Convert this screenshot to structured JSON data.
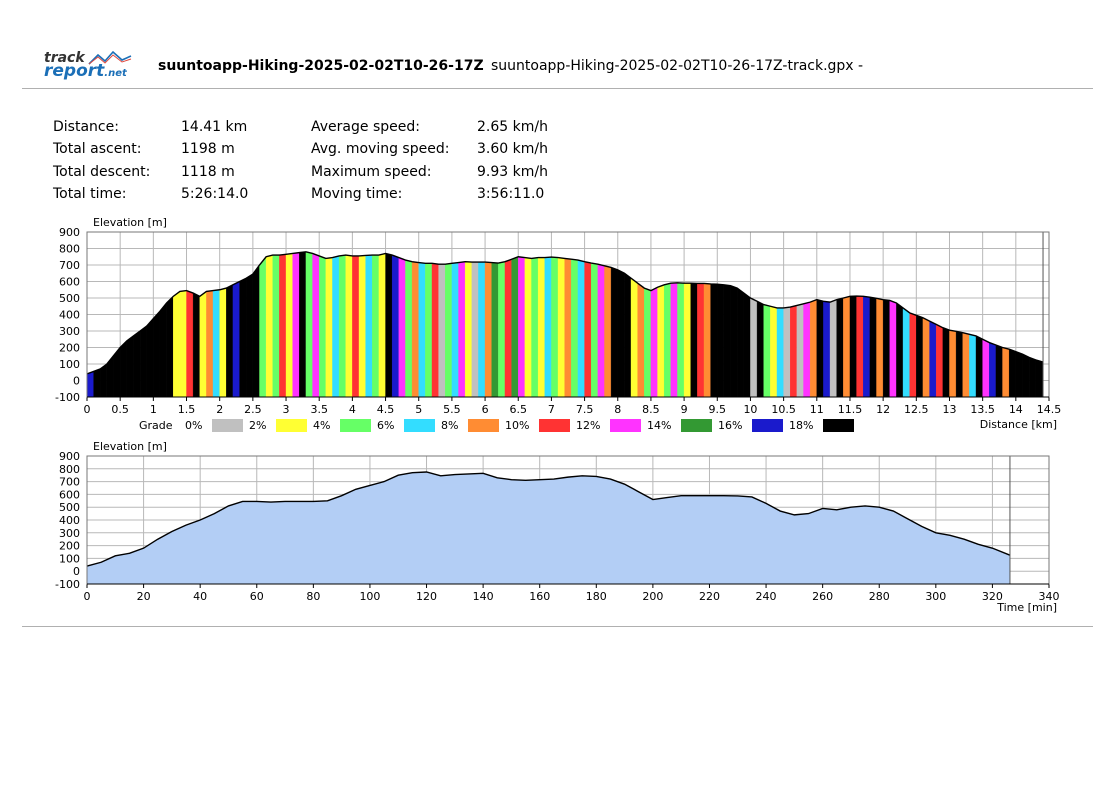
{
  "header": {
    "logo_line1": "track",
    "logo_line2": "report",
    "logo_suffix": ".net",
    "activity_title": "suuntoapp-Hiking-2025-02-02T10-26-17Z",
    "file_name": "suuntoapp-Hiking-2025-02-02T10-26-17Z-track.gpx",
    "dash": "-"
  },
  "stats": {
    "distance_label": "Distance:",
    "distance_value": "14.41 km",
    "ascent_label": "Total ascent:",
    "ascent_value": "1198 m",
    "descent_label": "Total descent:",
    "descent_value": "1118 m",
    "time_label": "Total time:",
    "time_value": "5:26:14.0",
    "avg_speed_label": "Average speed:",
    "avg_speed_value": "2.65 km/h",
    "avg_moving_label": "Avg. moving speed:",
    "avg_moving_value": "3.60 km/h",
    "max_speed_label": "Maximum speed:",
    "max_speed_value": "9.93 km/h",
    "moving_time_label": "Moving time:",
    "moving_time_value": "3:56:11.0"
  },
  "chart_data": [
    {
      "type": "area",
      "ylabel": "Elevation [m]",
      "xlabel": "Distance [km]",
      "xlim": [
        0,
        14.5
      ],
      "ylim": [
        -100,
        900
      ],
      "x_ticks": [
        "0",
        "0.5",
        "1",
        "1.5",
        "2",
        "2.5",
        "3",
        "3.5",
        "4",
        "4.5",
        "5",
        "5.5",
        "6",
        "6.5",
        "7",
        "7.5",
        "8",
        "8.5",
        "9",
        "9.5",
        "10",
        "10.5",
        "11",
        "11.5",
        "12",
        "12.5",
        "13",
        "13.5",
        "14",
        "14.5"
      ],
      "y_ticks": [
        "900",
        "800",
        "700",
        "600",
        "500",
        "400",
        "300",
        "200",
        "100",
        "0",
        "-100"
      ],
      "grid": true,
      "legend_title": "Grade",
      "legend": [
        {
          "label": "0%",
          "color": "#c0c0c0"
        },
        {
          "label": "2%",
          "color": "#ffff33"
        },
        {
          "label": "4%",
          "color": "#66ff66"
        },
        {
          "label": "6%",
          "color": "#33ddff"
        },
        {
          "label": "8%",
          "color": "#ff8c33"
        },
        {
          "label": "10%",
          "color": "#ff3333"
        },
        {
          "label": "12%",
          "color": "#ff33ff"
        },
        {
          "label": "14%",
          "color": "#339933"
        },
        {
          "label": "16%",
          "color": "#1a1acc"
        },
        {
          "label": "18%",
          "color": "#000000"
        }
      ],
      "end_marker": 14.41,
      "x": [
        0,
        0.1,
        0.2,
        0.3,
        0.4,
        0.5,
        0.6,
        0.7,
        0.8,
        0.9,
        1.0,
        1.1,
        1.2,
        1.3,
        1.4,
        1.5,
        1.6,
        1.7,
        1.8,
        1.9,
        2.0,
        2.1,
        2.2,
        2.3,
        2.4,
        2.5,
        2.6,
        2.7,
        2.8,
        2.9,
        3.0,
        3.1,
        3.2,
        3.3,
        3.4,
        3.5,
        3.6,
        3.7,
        3.8,
        3.9,
        4.0,
        4.1,
        4.2,
        4.3,
        4.4,
        4.5,
        4.6,
        4.7,
        4.8,
        4.9,
        5.0,
        5.1,
        5.2,
        5.3,
        5.4,
        5.5,
        5.6,
        5.7,
        5.8,
        5.9,
        6.0,
        6.1,
        6.2,
        6.3,
        6.4,
        6.5,
        6.6,
        6.7,
        6.8,
        6.9,
        7.0,
        7.1,
        7.2,
        7.3,
        7.4,
        7.5,
        7.6,
        7.7,
        7.8,
        7.9,
        8.0,
        8.1,
        8.2,
        8.3,
        8.4,
        8.5,
        8.6,
        8.7,
        8.8,
        8.9,
        9.0,
        9.1,
        9.2,
        9.3,
        9.4,
        9.5,
        9.6,
        9.7,
        9.8,
        9.9,
        10.0,
        10.1,
        10.2,
        10.3,
        10.4,
        10.5,
        10.6,
        10.7,
        10.8,
        10.9,
        11.0,
        11.1,
        11.2,
        11.3,
        11.4,
        11.5,
        11.6,
        11.7,
        11.8,
        11.9,
        12.0,
        12.1,
        12.2,
        12.3,
        12.4,
        12.5,
        12.6,
        12.7,
        12.8,
        12.9,
        13.0,
        13.1,
        13.2,
        13.3,
        13.4,
        13.5,
        13.6,
        13.7,
        13.8,
        13.9,
        14.0,
        14.1,
        14.2,
        14.3,
        14.41
      ],
      "elevation": [
        40,
        55,
        70,
        100,
        150,
        200,
        240,
        270,
        300,
        330,
        375,
        420,
        470,
        510,
        540,
        545,
        530,
        510,
        540,
        545,
        550,
        560,
        580,
        600,
        620,
        645,
        700,
        750,
        760,
        760,
        765,
        770,
        775,
        780,
        770,
        755,
        740,
        745,
        755,
        760,
        755,
        755,
        758,
        760,
        760,
        770,
        760,
        745,
        730,
        720,
        715,
        710,
        710,
        705,
        705,
        710,
        715,
        720,
        718,
        718,
        718,
        715,
        712,
        720,
        735,
        750,
        745,
        740,
        745,
        745,
        748,
        745,
        740,
        735,
        730,
        720,
        712,
        705,
        695,
        685,
        670,
        650,
        620,
        590,
        560,
        545,
        565,
        580,
        590,
        592,
        590,
        590,
        588,
        588,
        585,
        584,
        580,
        575,
        560,
        530,
        500,
        480,
        460,
        450,
        440,
        440,
        445,
        455,
        465,
        475,
        490,
        480,
        475,
        490,
        500,
        510,
        512,
        510,
        505,
        498,
        490,
        485,
        470,
        440,
        410,
        395,
        380,
        360,
        340,
        320,
        305,
        298,
        290,
        280,
        270,
        250,
        230,
        215,
        200,
        190,
        175,
        160,
        140,
        125,
        112
      ],
      "grade_colors": [
        "#1a1acc",
        "#000000",
        "#000000",
        "#000000",
        "#000000",
        "#000000",
        "#000000",
        "#000000",
        "#000000",
        "#000000",
        "#000000",
        "#000000",
        "#000000",
        "#ffff33",
        "#ffff33",
        "#ff3333",
        "#000000",
        "#ffff33",
        "#ff8c33",
        "#33ddff",
        "#ffff33",
        "#000000",
        "#1a1acc",
        "#000000",
        "#000000",
        "#000000",
        "#66ff66",
        "#ffff33",
        "#66ff66",
        "#ff3333",
        "#ffff33",
        "#ff33ff",
        "#000000",
        "#66ff66",
        "#ff33ff",
        "#66ff66",
        "#ffff33",
        "#33ddff",
        "#66ff66",
        "#ffff33",
        "#ff3333",
        "#ffff33",
        "#33ddff",
        "#66ff66",
        "#ffff33",
        "#000000",
        "#1a1acc",
        "#ff33ff",
        "#66ff66",
        "#ff8c33",
        "#33ddff",
        "#66ff66",
        "#ff3333",
        "#c0c0c0",
        "#66ff66",
        "#33ddff",
        "#ff33ff",
        "#ffff33",
        "#c0c0c0",
        "#33ddff",
        "#ff8c33",
        "#339933",
        "#66ff66",
        "#ff3333",
        "#339933",
        "#ff33ff",
        "#ffff33",
        "#66ff66",
        "#ffff33",
        "#33ddff",
        "#66ff66",
        "#ffff33",
        "#ff8c33",
        "#66ff66",
        "#33ddff",
        "#ff3333",
        "#66ff66",
        "#ff33ff",
        "#ff8c33",
        "#000000",
        "#000000",
        "#000000",
        "#ffff33",
        "#ff8c33",
        "#66ff66",
        "#ff33ff",
        "#ffff33",
        "#66ff66",
        "#ff33ff",
        "#66ff66",
        "#ffff33",
        "#000000",
        "#ff3333",
        "#ff8c33",
        "#000000",
        "#000000",
        "#000000",
        "#000000",
        "#000000",
        "#000000",
        "#c0c0c0",
        "#000000",
        "#66ff66",
        "#ffff33",
        "#33ddff",
        "#c0c0c0",
        "#ff3333",
        "#c0c0c0",
        "#ff33ff",
        "#ff8c33",
        "#000000",
        "#1a1acc",
        "#c0c0c0",
        "#000000",
        "#ff8c33",
        "#000000",
        "#ff3333",
        "#1a1acc",
        "#000000",
        "#ff8c33",
        "#000000",
        "#ff33ff",
        "#000000",
        "#33ddff",
        "#ff3333",
        "#000000",
        "#ff8c33",
        "#1a1acc",
        "#ff3333",
        "#000000",
        "#ff8c33",
        "#000000",
        "#ff8c33",
        "#33ddff",
        "#000000",
        "#ff33ff",
        "#1a1acc",
        "#000000",
        "#ff8c33",
        "#000000"
      ]
    },
    {
      "type": "area",
      "ylabel": "Elevation [m]",
      "xlabel": "Time [min]",
      "xlim": [
        0,
        340
      ],
      "ylim": [
        -100,
        900
      ],
      "x_ticks": [
        "0",
        "20",
        "40",
        "60",
        "80",
        "100",
        "120",
        "140",
        "160",
        "180",
        "200",
        "220",
        "240",
        "260",
        "280",
        "300",
        "320",
        "340"
      ],
      "y_ticks": [
        "900",
        "800",
        "700",
        "600",
        "500",
        "400",
        "300",
        "200",
        "100",
        "0",
        "-100"
      ],
      "grid": true,
      "fill_color": "#b3cef5",
      "end_marker": 326.2,
      "x": [
        0,
        5,
        10,
        15,
        20,
        25,
        30,
        35,
        40,
        45,
        50,
        55,
        60,
        65,
        70,
        75,
        80,
        85,
        90,
        95,
        100,
        105,
        110,
        115,
        120,
        125,
        130,
        135,
        140,
        145,
        150,
        155,
        160,
        165,
        170,
        175,
        180,
        185,
        190,
        195,
        200,
        205,
        210,
        215,
        220,
        225,
        230,
        235,
        240,
        245,
        250,
        255,
        260,
        265,
        270,
        275,
        280,
        285,
        290,
        295,
        300,
        305,
        310,
        315,
        320,
        326.2
      ],
      "elevation": [
        40,
        70,
        120,
        140,
        180,
        250,
        310,
        360,
        400,
        450,
        510,
        545,
        545,
        540,
        545,
        545,
        545,
        550,
        590,
        640,
        670,
        700,
        750,
        770,
        775,
        745,
        755,
        760,
        765,
        730,
        715,
        710,
        715,
        720,
        735,
        745,
        740,
        720,
        680,
        620,
        560,
        575,
        590,
        590,
        590,
        590,
        588,
        580,
        530,
        470,
        440,
        450,
        490,
        480,
        500,
        510,
        500,
        470,
        410,
        350,
        300,
        280,
        250,
        210,
        180,
        125
      ]
    }
  ]
}
